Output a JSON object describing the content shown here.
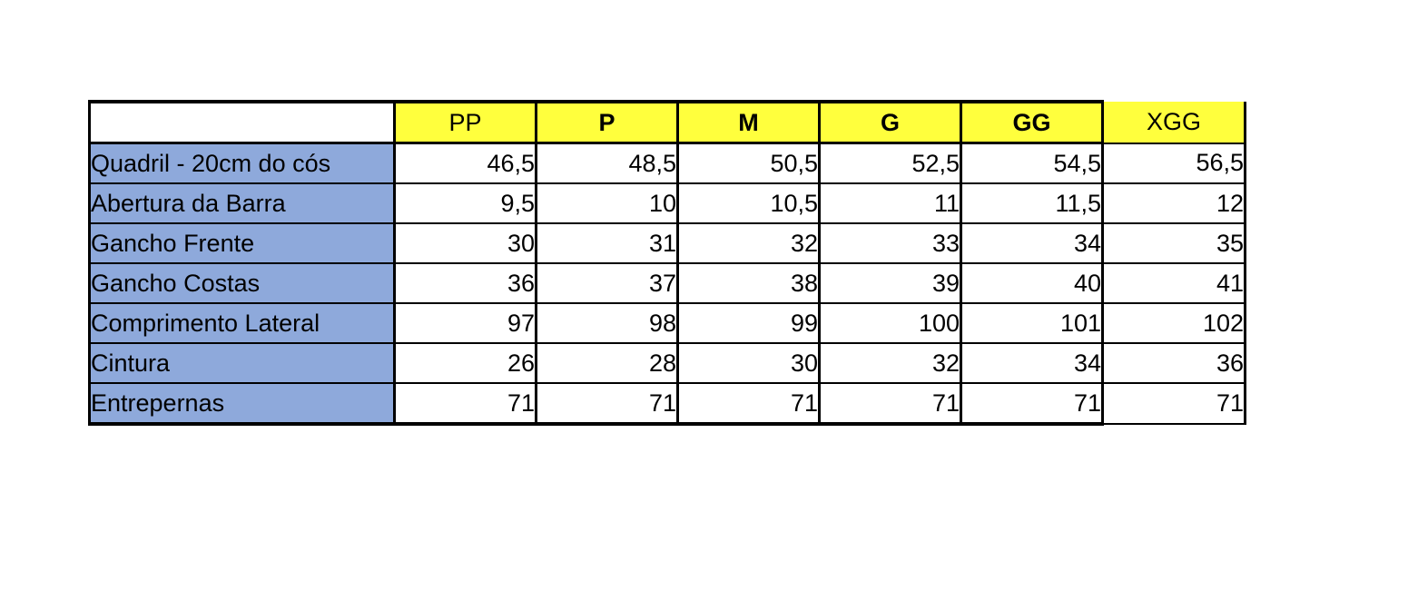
{
  "table": {
    "corner_label": "",
    "columns": [
      {
        "label": "PP",
        "bold": false
      },
      {
        "label": "P",
        "bold": true
      },
      {
        "label": "M",
        "bold": true
      },
      {
        "label": "G",
        "bold": true
      },
      {
        "label": "GG",
        "bold": true
      },
      {
        "label": "XGG",
        "bold": false
      }
    ],
    "rows": [
      {
        "label": "Quadril - 20cm do cós",
        "values": [
          "46,5",
          "48,5",
          "50,5",
          "52,5",
          "54,5",
          "56,5"
        ]
      },
      {
        "label": "Abertura da Barra",
        "values": [
          "9,5",
          "10",
          "10,5",
          "11",
          "11,5",
          "12"
        ]
      },
      {
        "label": "Gancho Frente",
        "values": [
          "30",
          "31",
          "32",
          "33",
          "34",
          "35"
        ]
      },
      {
        "label": "Gancho Costas",
        "values": [
          "36",
          "37",
          "38",
          "39",
          "40",
          "41"
        ]
      },
      {
        "label": "Comprimento Lateral",
        "values": [
          "97",
          "98",
          "99",
          "100",
          "101",
          "102"
        ]
      },
      {
        "label": "Cintura",
        "values": [
          "26",
          "28",
          "30",
          "32",
          "34",
          "36"
        ]
      },
      {
        "label": "Entrepernas",
        "values": [
          "71",
          "71",
          "71",
          "71",
          "71",
          "71"
        ]
      }
    ],
    "colors": {
      "background": "#FFFFFF",
      "header_bg": "#FFFF3D",
      "row_label_bg": "#8EA9DB",
      "border": "#000000",
      "text": "#000000"
    }
  },
  "chart_data": {
    "type": "table",
    "title": "",
    "categories": [
      "PP",
      "P",
      "M",
      "G",
      "GG",
      "XGG"
    ],
    "series": [
      {
        "name": "Quadril - 20cm do cós",
        "values": [
          46.5,
          48.5,
          50.5,
          52.5,
          54.5,
          56.5
        ]
      },
      {
        "name": "Abertura da Barra",
        "values": [
          9.5,
          10,
          10.5,
          11,
          11.5,
          12
        ]
      },
      {
        "name": "Gancho Frente",
        "values": [
          30,
          31,
          32,
          33,
          34,
          35
        ]
      },
      {
        "name": "Gancho Costas",
        "values": [
          36,
          37,
          38,
          39,
          40,
          41
        ]
      },
      {
        "name": "Comprimento Lateral",
        "values": [
          97,
          98,
          99,
          100,
          101,
          102
        ]
      },
      {
        "name": "Cintura",
        "values": [
          26,
          28,
          30,
          32,
          34,
          36
        ]
      },
      {
        "name": "Entrepernas",
        "values": [
          71,
          71,
          71,
          71,
          71,
          71
        ]
      }
    ]
  }
}
